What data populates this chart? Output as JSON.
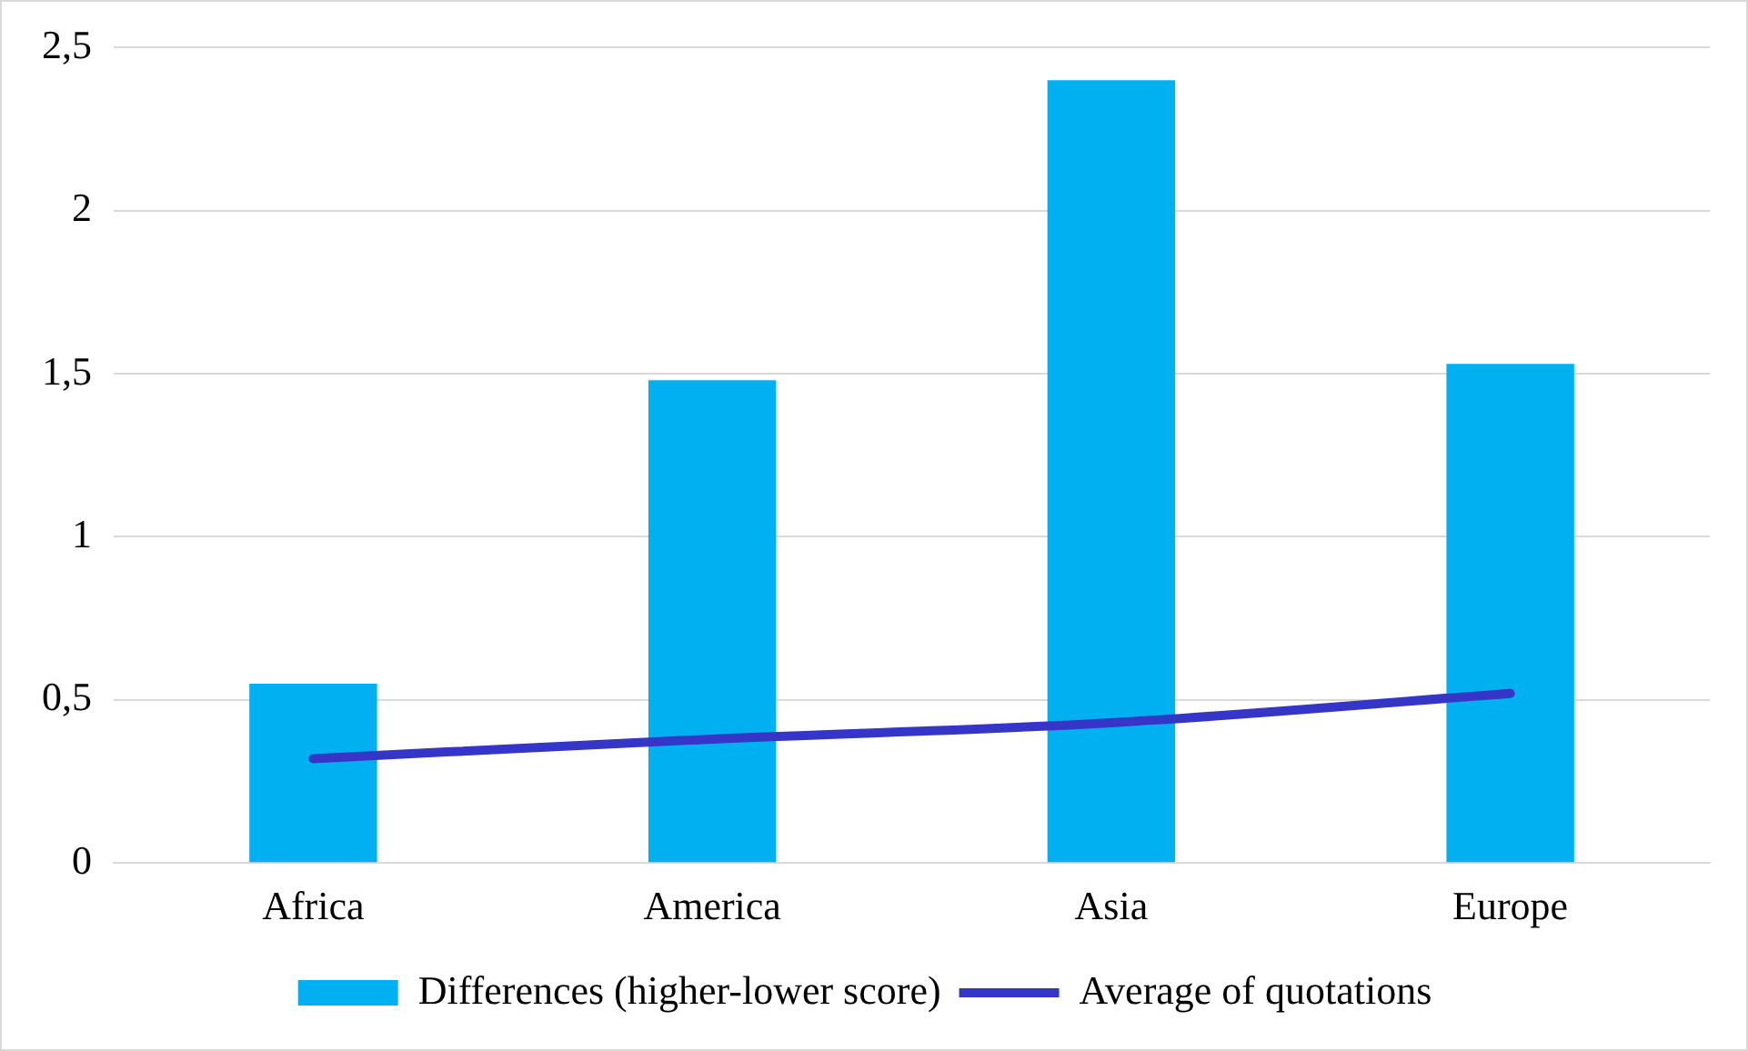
{
  "chart_data": {
    "type": "bar",
    "categories": [
      "Africa",
      "America",
      "Asia",
      "Europe"
    ],
    "series": [
      {
        "name": "Differences (higher-lower score)",
        "color": "#00b0f0",
        "values": [
          0.55,
          1.48,
          2.4,
          1.53
        ]
      },
      {
        "name": "Average of quotations",
        "type": "line",
        "color": "#3535c8",
        "values": [
          0.32,
          0.38,
          0.43,
          0.52
        ]
      }
    ],
    "ylim": [
      0,
      2.5
    ],
    "yticks": [
      0,
      {
        "value": 0.5,
        "label": "0,5"
      },
      1,
      {
        "value": 1.5,
        "label": "1,5"
      },
      2,
      {
        "value": 2.5,
        "label": "2,5"
      }
    ],
    "grid": "y",
    "legend": "bottom",
    "marker": "none"
  }
}
